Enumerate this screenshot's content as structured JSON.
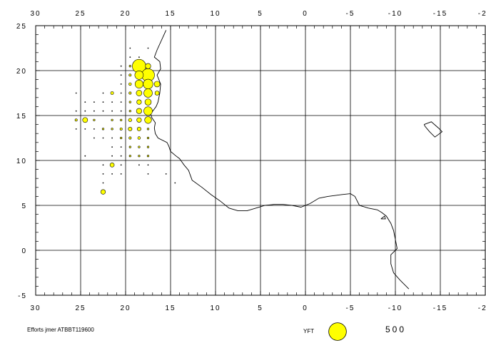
{
  "chart_data": {
    "type": "scatter",
    "x_ticks": [
      "30",
      "25",
      "20",
      "15",
      "10",
      "5",
      "0",
      "-5",
      "-10",
      "-15",
      "-20"
    ],
    "y_ticks": [
      "25",
      "20",
      "15",
      "10",
      "5",
      "0",
      "-5"
    ],
    "x_tick_values": [
      30,
      25,
      20,
      15,
      10,
      5,
      0,
      -5,
      -10,
      -15,
      -20
    ],
    "y_tick_values": [
      25,
      20,
      15,
      10,
      5,
      0,
      -5
    ],
    "xlim": [
      30,
      -20
    ],
    "ylim": [
      -5,
      25
    ],
    "grid": true,
    "series": [
      {
        "name": "YFT",
        "color": "#ffff00",
        "points": [
          {
            "lon": 18.5,
            "lat": 20.5,
            "v": 500
          },
          {
            "lon": 17.5,
            "lat": 19.5,
            "v": 450
          },
          {
            "lon": 18.5,
            "lat": 19.5,
            "v": 200
          },
          {
            "lon": 17.5,
            "lat": 20.5,
            "v": 80
          },
          {
            "lon": 19.5,
            "lat": 20.5,
            "v": 10
          },
          {
            "lon": 19.5,
            "lat": 19.5,
            "v": 15
          },
          {
            "lon": 18.5,
            "lat": 18.5,
            "v": 180
          },
          {
            "lon": 17.5,
            "lat": 18.5,
            "v": 260
          },
          {
            "lon": 16.5,
            "lat": 18.5,
            "v": 90
          },
          {
            "lon": 19.5,
            "lat": 18.5,
            "v": 20
          },
          {
            "lon": 18.5,
            "lat": 17.5,
            "v": 90
          },
          {
            "lon": 17.5,
            "lat": 17.5,
            "v": 200
          },
          {
            "lon": 16.5,
            "lat": 17.5,
            "v": 50
          },
          {
            "lon": 19.5,
            "lat": 17.5,
            "v": 15
          },
          {
            "lon": 21.5,
            "lat": 17.5,
            "v": 25
          },
          {
            "lon": 18.5,
            "lat": 16.5,
            "v": 60
          },
          {
            "lon": 17.5,
            "lat": 16.5,
            "v": 110
          },
          {
            "lon": 19.5,
            "lat": 16.5,
            "v": 10
          },
          {
            "lon": 18.5,
            "lat": 15.5,
            "v": 80
          },
          {
            "lon": 17.5,
            "lat": 15.5,
            "v": 200
          },
          {
            "lon": 19.5,
            "lat": 15.5,
            "v": 5
          },
          {
            "lon": 17.5,
            "lat": 14.5,
            "v": 130
          },
          {
            "lon": 18.5,
            "lat": 14.5,
            "v": 60
          },
          {
            "lon": 19.5,
            "lat": 14.5,
            "v": 30
          },
          {
            "lon": 24.5,
            "lat": 14.5,
            "v": 70
          },
          {
            "lon": 25.5,
            "lat": 14.5,
            "v": 15
          },
          {
            "lon": 23.5,
            "lat": 14.5,
            "v": 5
          },
          {
            "lon": 21.5,
            "lat": 14.5,
            "v": 5
          },
          {
            "lon": 20.5,
            "lat": 14.5,
            "v": 4
          },
          {
            "lon": 18.5,
            "lat": 13.5,
            "v": 40
          },
          {
            "lon": 19.5,
            "lat": 13.5,
            "v": 40
          },
          {
            "lon": 17.5,
            "lat": 13.5,
            "v": 10
          },
          {
            "lon": 20.5,
            "lat": 13.5,
            "v": 15
          },
          {
            "lon": 21.5,
            "lat": 13.5,
            "v": 8
          },
          {
            "lon": 22.5,
            "lat": 13.5,
            "v": 4
          },
          {
            "lon": 18.5,
            "lat": 12.5,
            "v": 20
          },
          {
            "lon": 19.5,
            "lat": 12.5,
            "v": 15
          },
          {
            "lon": 17.5,
            "lat": 12.5,
            "v": 5
          },
          {
            "lon": 20.5,
            "lat": 12.5,
            "v": 5
          },
          {
            "lon": 18.5,
            "lat": 11.5,
            "v": 10
          },
          {
            "lon": 19.5,
            "lat": 11.5,
            "v": 8
          },
          {
            "lon": 17.5,
            "lat": 11.5,
            "v": 6
          },
          {
            "lon": 18.5,
            "lat": 10.5,
            "v": 5
          },
          {
            "lon": 19.5,
            "lat": 10.5,
            "v": 5
          },
          {
            "lon": 17.5,
            "lat": 10.5,
            "v": 4
          },
          {
            "lon": 21.5,
            "lat": 9.5,
            "v": 50
          },
          {
            "lon": 22.5,
            "lat": 6.5,
            "v": 60
          }
        ]
      },
      {
        "name": "Efforts",
        "color": "#000000",
        "points": [
          {
            "lon": 19.5,
            "lat": 21.5
          },
          {
            "lon": 18.5,
            "lat": 21.5
          },
          {
            "lon": 20.5,
            "lat": 20.5
          },
          {
            "lon": 20.5,
            "lat": 19.5
          },
          {
            "lon": 20.5,
            "lat": 18.5
          },
          {
            "lon": 20.5,
            "lat": 17.5
          },
          {
            "lon": 20.5,
            "lat": 16.5
          },
          {
            "lon": 20.5,
            "lat": 15.5
          },
          {
            "lon": 21.5,
            "lat": 16.5
          },
          {
            "lon": 21.5,
            "lat": 15.5
          },
          {
            "lon": 22.5,
            "lat": 16.5
          },
          {
            "lon": 22.5,
            "lat": 15.5
          },
          {
            "lon": 23.5,
            "lat": 16.5
          },
          {
            "lon": 23.5,
            "lat": 15.5
          },
          {
            "lon": 24.5,
            "lat": 16.5
          },
          {
            "lon": 24.5,
            "lat": 15.5
          },
          {
            "lon": 25.5,
            "lat": 17.5
          },
          {
            "lon": 25.5,
            "lat": 15.5
          },
          {
            "lon": 22.5,
            "lat": 17.5
          },
          {
            "lon": 23.5,
            "lat": 13.5
          },
          {
            "lon": 24.5,
            "lat": 13.5
          },
          {
            "lon": 25.5,
            "lat": 13.5
          },
          {
            "lon": 21.5,
            "lat": 12.5
          },
          {
            "lon": 22.5,
            "lat": 12.5
          },
          {
            "lon": 23.5,
            "lat": 12.5
          },
          {
            "lon": 20.5,
            "lat": 11.5
          },
          {
            "lon": 21.5,
            "lat": 11.5
          },
          {
            "lon": 20.5,
            "lat": 10.5
          },
          {
            "lon": 21.5,
            "lat": 10.5
          },
          {
            "lon": 24.5,
            "lat": 10.5
          },
          {
            "lon": 20.5,
            "lat": 9.5
          },
          {
            "lon": 18.5,
            "lat": 9.5
          },
          {
            "lon": 17.5,
            "lat": 9.5
          },
          {
            "lon": 22.5,
            "lat": 9.5
          },
          {
            "lon": 20.5,
            "lat": 8.5
          },
          {
            "lon": 21.5,
            "lat": 8.5
          },
          {
            "lon": 22.5,
            "lat": 8.5
          },
          {
            "lon": 17.5,
            "lat": 8.5
          },
          {
            "lon": 15.5,
            "lat": 8.5
          },
          {
            "lon": 14.5,
            "lat": 7.5
          },
          {
            "lon": 22.5,
            "lat": 7.5
          },
          {
            "lon": 19.5,
            "lat": 22.5
          },
          {
            "lon": 17.5,
            "lat": 22.5
          }
        ]
      }
    ],
    "coastline_africa": [
      [
        15.5,
        24.5
      ],
      [
        16.5,
        22.3
      ],
      [
        16.8,
        21.5
      ],
      [
        16.2,
        21.0
      ],
      [
        16.1,
        20.2
      ],
      [
        16.5,
        19.5
      ],
      [
        16.1,
        18.5
      ],
      [
        16.2,
        17.5
      ],
      [
        16.4,
        16.5
      ],
      [
        16.6,
        16.0
      ],
      [
        17.2,
        15.2
      ],
      [
        17.1,
        14.8
      ],
      [
        16.7,
        14.2
      ],
      [
        16.8,
        13.6
      ],
      [
        16.7,
        13.0
      ],
      [
        16.4,
        12.5
      ],
      [
        15.4,
        12.0
      ],
      [
        15.2,
        11.6
      ],
      [
        15.0,
        11.0
      ],
      [
        14.4,
        10.5
      ],
      [
        14.0,
        10.2
      ],
      [
        13.5,
        9.5
      ],
      [
        13.0,
        8.9
      ],
      [
        12.6,
        7.8
      ],
      [
        11.5,
        7.0
      ],
      [
        10.5,
        6.2
      ],
      [
        9.5,
        5.5
      ],
      [
        8.5,
        4.7
      ],
      [
        7.5,
        4.4
      ],
      [
        6.5,
        4.4
      ],
      [
        5.5,
        4.7
      ],
      [
        4.5,
        5.0
      ],
      [
        3.5,
        5.1
      ],
      [
        2.5,
        5.1
      ],
      [
        1.5,
        5.0
      ],
      [
        0.5,
        4.8
      ],
      [
        -0.5,
        5.2
      ],
      [
        -1.5,
        5.8
      ],
      [
        -2.5,
        6.0
      ],
      [
        -4.0,
        6.2
      ],
      [
        -5.0,
        6.3
      ],
      [
        -5.5,
        6.0
      ],
      [
        -6.0,
        5.0
      ],
      [
        -7.0,
        4.7
      ],
      [
        -8.0,
        4.5
      ],
      [
        -8.5,
        4.2
      ],
      [
        -9.0,
        3.8
      ],
      [
        -9.5,
        3.0
      ],
      [
        -9.8,
        2.2
      ],
      [
        -10.0,
        1.2
      ],
      [
        -10.2,
        0.2
      ],
      [
        -9.5,
        -0.5
      ],
      [
        -9.5,
        -1.5
      ],
      [
        -9.8,
        -2.5
      ],
      [
        -10.5,
        -3.3
      ],
      [
        -11.5,
        -4.3
      ]
    ],
    "coastline_ascension": [
      [
        -13.2,
        14.0
      ],
      [
        -14.0,
        14.3
      ],
      [
        -14.8,
        13.6
      ],
      [
        -15.2,
        13.2
      ],
      [
        -14.4,
        12.6
      ],
      [
        -13.8,
        13.2
      ],
      [
        -13.3,
        13.8
      ],
      [
        -13.2,
        14.0
      ]
    ],
    "coastline_small": [
      [
        -8.4,
        3.5
      ],
      [
        -8.8,
        3.8
      ],
      [
        -8.9,
        3.5
      ],
      [
        -8.4,
        3.5
      ]
    ],
    "legend": {
      "species_label": "YFT",
      "value_label": "500",
      "value": 500,
      "color": "#ffff00"
    },
    "footer_text": "Efforts jmer ATBBT119600"
  }
}
